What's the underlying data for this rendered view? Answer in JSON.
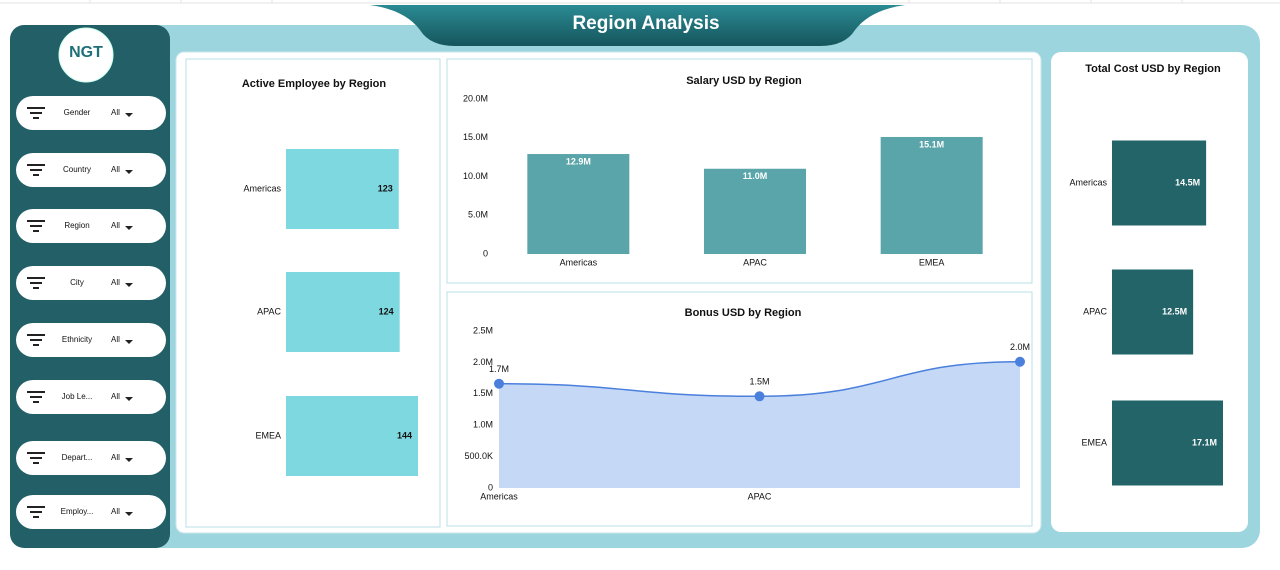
{
  "header": {
    "title": "Region Analysis",
    "logo": "NGT"
  },
  "filters": [
    {
      "label": "Gender",
      "value": "All"
    },
    {
      "label": "Country",
      "value": "All"
    },
    {
      "label": "Region",
      "value": "All"
    },
    {
      "label": "City",
      "value": "All"
    },
    {
      "label": "Ethnicity",
      "value": "All"
    },
    {
      "label": "Job Le...",
      "value": "All"
    },
    {
      "label": "Depart...",
      "value": "All"
    },
    {
      "label": "Employ...",
      "value": "All"
    }
  ],
  "chart_data": [
    {
      "type": "hbar",
      "title": "Active Employee by Region",
      "categories": [
        "Americas",
        "APAC",
        "EMEA"
      ],
      "values": [
        123,
        124,
        144
      ],
      "color": "#7dd8e0"
    },
    {
      "type": "bar",
      "title": "Salary USD by Region",
      "categories": [
        "Americas",
        "APAC",
        "EMEA"
      ],
      "values": [
        12900000,
        11000000,
        15100000
      ],
      "value_labels": [
        "12.9M",
        "11.0M",
        "15.1M"
      ],
      "color": "#5aa5aa",
      "ylim": [
        0,
        20000000
      ],
      "yticks": [
        0,
        {
          "value": 5000000,
          "label": "5.0M"
        },
        {
          "value": 10000000,
          "label": "10.0M"
        },
        {
          "value": 15000000,
          "label": "15.0M"
        },
        {
          "value": 20000000,
          "label": "20.0M"
        }
      ]
    },
    {
      "type": "area",
      "title": "Bonus USD by Region",
      "categories": [
        "Americas",
        "APAC",
        null
      ],
      "values": [
        1660000,
        1460000,
        2010000
      ],
      "value_labels": [
        "1.7M",
        "1.5M",
        "2.0M"
      ],
      "color": "#4a7fdc",
      "fill": "#c5d9f7",
      "ylim": [
        0,
        2500000
      ],
      "yticks": [
        0,
        {
          "value": 500000,
          "label": "500.0K"
        },
        {
          "value": 1000000,
          "label": "1.0M"
        },
        {
          "value": 1500000,
          "label": "1.5M"
        },
        {
          "value": 2000000,
          "label": "2.0M"
        },
        {
          "value": 2500000,
          "label": "2.5M"
        }
      ]
    },
    {
      "type": "hbar",
      "title": "Total Cost USD by Region",
      "categories": [
        "Americas",
        "APAC",
        "EMEA"
      ],
      "values": [
        14500000,
        12500000,
        17100000
      ],
      "value_labels": [
        "14.5M",
        "12.5M",
        "17.1M"
      ],
      "color": "#236468"
    }
  ]
}
